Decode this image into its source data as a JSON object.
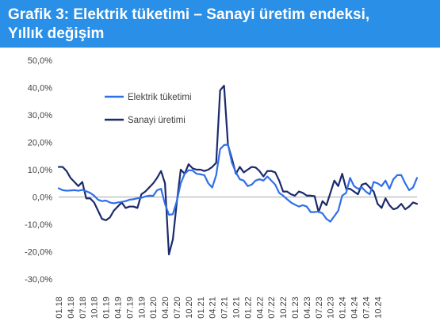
{
  "header": {
    "title_line1": "Grafik 3: Elektrik tüketimi – Sanayi üretim endeksi,",
    "title_line2": "Yıllık değişim"
  },
  "colors": {
    "header_bg": "#2a8fe6",
    "elektrik": "#2f6fe8",
    "sanayi": "#1b2a6b",
    "zero_line": "#a6a6a6"
  },
  "chart_data": {
    "type": "line",
    "title": "Grafik 3: Elektrik tüketimi – Sanayi üretim endeksi, Yıllık değişim",
    "xlabel": "",
    "ylabel": "",
    "ylim": [
      -30,
      50
    ],
    "y_ticks": [
      "50,0%",
      "40,0%",
      "30,0%",
      "20,0%",
      "10,0%",
      "0,0%",
      "-10,0%",
      "-20,0%",
      "-30,0%"
    ],
    "y_tick_values": [
      50,
      40,
      30,
      20,
      10,
      0,
      -10,
      -20,
      -30
    ],
    "x_tick_labels": [
      "01.18",
      "04.18",
      "07.18",
      "10.18",
      "01.19",
      "04.19",
      "07.19",
      "10.19",
      "01.20",
      "04.20",
      "07.20",
      "10.20",
      "01.21",
      "04.21",
      "07.21",
      "10.21",
      "01.22",
      "04.22",
      "07.22",
      "10.22",
      "01.23",
      "04.23",
      "07.23",
      "10.23",
      "01.24",
      "04.24",
      "07.24",
      "10.24"
    ],
    "x_tick_step_months": 3,
    "start_month": "01.18",
    "grid": false,
    "legend_position": "upper-left",
    "series": [
      {
        "name": "Elektrik tüketimi",
        "color": "#2f6fe8",
        "values": [
          3.2,
          2.5,
          2.3,
          2.4,
          2.5,
          2.3,
          2.6,
          2.1,
          1.5,
          0.5,
          -1.0,
          -1.5,
          -1.3,
          -2.0,
          -2.3,
          -2.0,
          -1.8,
          -1.5,
          -1.0,
          -0.8,
          -0.5,
          -0.3,
          0.2,
          0.5,
          0.4,
          2.5,
          3.0,
          -2.5,
          -6.5,
          -6.3,
          -1.5,
          5.0,
          8.5,
          9.8,
          9.7,
          8.5,
          8.3,
          8.0,
          5.0,
          3.5,
          8.0,
          17.5,
          19.0,
          19.2,
          12.5,
          9.0,
          6.5,
          6.0,
          4.0,
          4.5,
          6.0,
          6.5,
          6.0,
          7.5,
          6.0,
          4.5,
          1.5,
          0.5,
          -0.8,
          -2.0,
          -2.8,
          -3.5,
          -3.0,
          -3.5,
          -5.5,
          -5.5,
          -5.3,
          -6.0,
          -8.0,
          -9.0,
          -7.0,
          -5.0,
          0.5,
          1.5,
          7.0,
          4.0,
          3.0,
          3.5,
          2.0,
          1.0,
          5.5,
          5.0,
          4.0,
          6.0,
          3.0,
          6.5,
          8.0,
          8.0,
          5.0,
          2.5,
          3.5,
          7.0
        ]
      },
      {
        "name": "Sanayi üretimi",
        "color": "#1b2a6b",
        "values": [
          11.0,
          11.0,
          9.5,
          7.0,
          5.5,
          4.0,
          5.5,
          -0.5,
          -0.5,
          -2.0,
          -5.0,
          -8.0,
          -8.5,
          -7.5,
          -5.0,
          -3.5,
          -2.0,
          -4.0,
          -3.5,
          -3.5,
          -4.0,
          1.0,
          2.0,
          3.5,
          5.0,
          7.0,
          9.5,
          5.0,
          -21.0,
          -15.5,
          -2.0,
          10.0,
          8.5,
          12.0,
          10.5,
          10.0,
          10.0,
          9.5,
          10.0,
          11.0,
          12.5,
          39.0,
          40.7,
          19.0,
          14.0,
          8.5,
          11.0,
          9.0,
          10.0,
          11.0,
          10.8,
          9.5,
          7.5,
          9.5,
          9.5,
          9.0,
          6.0,
          2.0,
          2.0,
          1.0,
          0.5,
          2.0,
          1.5,
          0.5,
          0.5,
          0.3,
          -5.5,
          -1.5,
          -3.0,
          1.5,
          6.0,
          4.0,
          8.5,
          3.0,
          3.0,
          2.0,
          1.0,
          4.5,
          5.0,
          3.5,
          2.0,
          -2.5,
          -4.0,
          -0.5,
          -3.0,
          -4.5,
          -4.0,
          -2.5,
          -4.5,
          -3.5,
          -2.0,
          -2.5
        ]
      }
    ]
  }
}
